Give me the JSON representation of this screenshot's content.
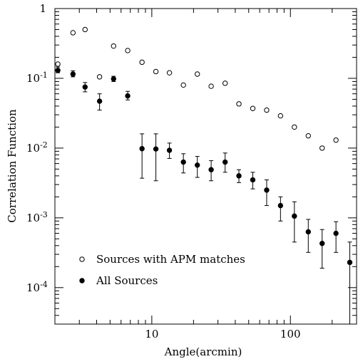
{
  "chart_data": {
    "type": "scatter",
    "x_scale": "log",
    "y_scale": "log",
    "xlabel": "Angle(arcmin)",
    "ylabel": "Correlation Function",
    "xlim": [
      2,
      300
    ],
    "ylim": [
      3e-05,
      1
    ],
    "x_ticklabels": [
      {
        "value": 10,
        "label": "10"
      },
      {
        "value": 100,
        "label": "100"
      }
    ],
    "y_ticklabels": [
      {
        "value": 1,
        "base": "1",
        "exp": ""
      },
      {
        "value": 0.1,
        "base": "10",
        "exp": "-1"
      },
      {
        "value": 0.01,
        "base": "10",
        "exp": "-2"
      },
      {
        "value": 0.001,
        "base": "10",
        "exp": "-3"
      },
      {
        "value": 0.0001,
        "base": "10",
        "exp": "-4"
      }
    ],
    "legend_position": "lower-left",
    "series": [
      {
        "name": "Sources with APM matches",
        "marker": "open-circle",
        "points": [
          {
            "x": 2.1,
            "y": 0.16
          },
          {
            "x": 2.7,
            "y": 0.45
          },
          {
            "x": 3.3,
            "y": 0.5
          },
          {
            "x": 4.2,
            "y": 0.105
          },
          {
            "x": 5.3,
            "y": 0.29
          },
          {
            "x": 6.7,
            "y": 0.25
          },
          {
            "x": 8.5,
            "y": 0.17
          },
          {
            "x": 10.7,
            "y": 0.125
          },
          {
            "x": 13.4,
            "y": 0.12
          },
          {
            "x": 16.9,
            "y": 0.08
          },
          {
            "x": 21.3,
            "y": 0.115
          },
          {
            "x": 26.8,
            "y": 0.077
          },
          {
            "x": 33.8,
            "y": 0.085
          },
          {
            "x": 42.5,
            "y": 0.043
          },
          {
            "x": 53.5,
            "y": 0.037
          },
          {
            "x": 67.4,
            "y": 0.035
          },
          {
            "x": 84.8,
            "y": 0.029
          },
          {
            "x": 106.8,
            "y": 0.02
          },
          {
            "x": 134.5,
            "y": 0.015
          },
          {
            "x": 169.3,
            "y": 0.01
          },
          {
            "x": 213.1,
            "y": 0.013
          }
        ]
      },
      {
        "name": "All Sources",
        "marker": "filled-circle",
        "points": [
          {
            "x": 2.1,
            "y": 0.13,
            "lo": 0.12,
            "hi": 0.145
          },
          {
            "x": 2.7,
            "y": 0.115,
            "lo": 0.105,
            "hi": 0.128
          },
          {
            "x": 3.3,
            "y": 0.075,
            "lo": 0.064,
            "hi": 0.087
          },
          {
            "x": 4.2,
            "y": 0.047,
            "lo": 0.035,
            "hi": 0.06
          },
          {
            "x": 5.3,
            "y": 0.098,
            "lo": 0.09,
            "hi": 0.107
          },
          {
            "x": 6.7,
            "y": 0.056,
            "lo": 0.049,
            "hi": 0.065
          },
          {
            "x": 8.5,
            "y": 0.0098,
            "lo": 0.0037,
            "hi": 0.016
          },
          {
            "x": 10.7,
            "y": 0.0097,
            "lo": 0.0034,
            "hi": 0.016
          },
          {
            "x": 13.4,
            "y": 0.0093,
            "lo": 0.0071,
            "hi": 0.0118
          },
          {
            "x": 16.9,
            "y": 0.0063,
            "lo": 0.0044,
            "hi": 0.0083
          },
          {
            "x": 21.3,
            "y": 0.0057,
            "lo": 0.0038,
            "hi": 0.0076
          },
          {
            "x": 26.8,
            "y": 0.0049,
            "lo": 0.0034,
            "hi": 0.0066
          },
          {
            "x": 33.8,
            "y": 0.0063,
            "lo": 0.0045,
            "hi": 0.0085
          },
          {
            "x": 42.5,
            "y": 0.004,
            "lo": 0.0032,
            "hi": 0.0049
          },
          {
            "x": 53.5,
            "y": 0.0035,
            "lo": 0.0026,
            "hi": 0.0045
          },
          {
            "x": 67.4,
            "y": 0.0025,
            "lo": 0.0015,
            "hi": 0.0035
          },
          {
            "x": 84.8,
            "y": 0.0015,
            "lo": 0.0009,
            "hi": 0.002
          },
          {
            "x": 106.8,
            "y": 0.00106,
            "lo": 0.00045,
            "hi": 0.0017
          },
          {
            "x": 134.5,
            "y": 0.00063,
            "lo": 0.00032,
            "hi": 0.00095
          },
          {
            "x": 169.3,
            "y": 0.00043,
            "lo": 0.00019,
            "hi": 0.00068
          },
          {
            "x": 213.1,
            "y": 0.0006,
            "lo": 0.00032,
            "hi": 0.00088
          },
          {
            "x": 268.0,
            "y": 0.00023,
            "lo": 1e-05,
            "hi": 0.00045
          }
        ]
      }
    ]
  }
}
